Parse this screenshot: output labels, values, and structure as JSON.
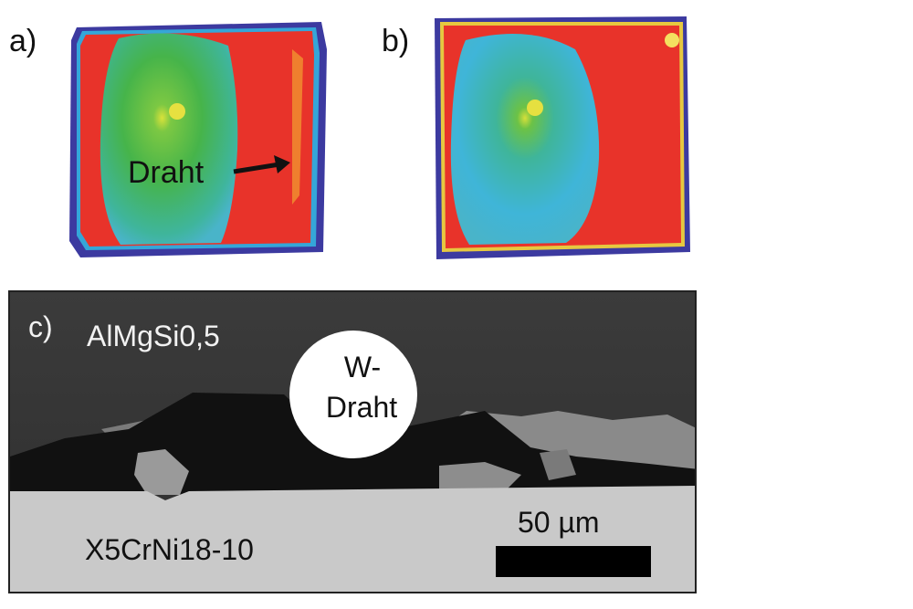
{
  "panels": {
    "a": {
      "label": "a)",
      "arrow_label": "Draht"
    },
    "b": {
      "label": "b)"
    },
    "c": {
      "label": "c)",
      "top_material": "AlMgSi0,5",
      "wire_label_line1": "W-",
      "wire_label_line2": "Draht",
      "bottom_material": "X5CrNi18-10",
      "scale_bar_label": "50 µm"
    }
  },
  "colors": {
    "map_red": "#e8332a",
    "map_green": "#49b84a",
    "map_cyan": "#3fb5d8",
    "map_yellow": "#e6e040",
    "map_edge": "#3c3aa0",
    "sem_matrix": "#3a3a3a",
    "sem_substrate": "#c9c9c9",
    "sem_wire": "#ffffff"
  }
}
